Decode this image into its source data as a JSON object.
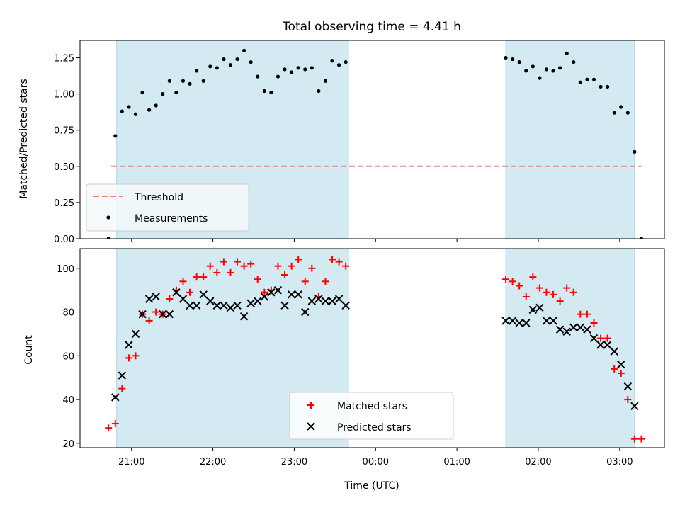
{
  "colors": {
    "threshold": "#f08080",
    "measurement": "#000000",
    "matched": "#ff0000",
    "predicted": "#000000",
    "shade": "#add8e6",
    "legend_bg": "#f5f9fc"
  },
  "chart_data": [
    {
      "type": "scatter",
      "title": "Total observing time = 4.41 h",
      "xlabel": "",
      "ylabel": "Matched/Predicted stars",
      "xlim": [
        "20:22",
        "03:33"
      ],
      "ylim": [
        0,
        1.37
      ],
      "grid": false,
      "legend": "lower-left",
      "yticks": [
        "0.00",
        "0.25",
        "0.50",
        "0.75",
        "1.00",
        "1.25"
      ],
      "shaded_ranges": [
        [
          "20:49",
          "23:40"
        ],
        [
          "01:36",
          "03:11"
        ]
      ],
      "threshold": {
        "name": "Threshold",
        "y": 0.5,
        "x_range": [
          "20:45",
          "03:16"
        ]
      },
      "series": [
        {
          "name": "Measurements",
          "points": [
            [
              "20:43",
              0.0
            ],
            [
              "20:48",
              0.71
            ],
            [
              "20:53",
              0.88
            ],
            [
              "20:58",
              0.91
            ],
            [
              "21:03",
              0.86
            ],
            [
              "21:08",
              1.01
            ],
            [
              "21:13",
              0.89
            ],
            [
              "21:18",
              0.92
            ],
            [
              "21:23",
              1.0
            ],
            [
              "21:28",
              1.09
            ],
            [
              "21:33",
              1.01
            ],
            [
              "21:38",
              1.09
            ],
            [
              "21:43",
              1.07
            ],
            [
              "21:48",
              1.16
            ],
            [
              "21:53",
              1.09
            ],
            [
              "21:58",
              1.19
            ],
            [
              "22:03",
              1.18
            ],
            [
              "22:08",
              1.24
            ],
            [
              "22:13",
              1.2
            ],
            [
              "22:18",
              1.24
            ],
            [
              "22:23",
              1.3
            ],
            [
              "22:28",
              1.22
            ],
            [
              "22:33",
              1.12
            ],
            [
              "22:38",
              1.02
            ],
            [
              "22:43",
              1.01
            ],
            [
              "22:48",
              1.12
            ],
            [
              "22:53",
              1.17
            ],
            [
              "22:58",
              1.15
            ],
            [
              "23:03",
              1.18
            ],
            [
              "23:08",
              1.17
            ],
            [
              "23:13",
              1.18
            ],
            [
              "23:18",
              1.02
            ],
            [
              "23:23",
              1.09
            ],
            [
              "23:28",
              1.23
            ],
            [
              "23:33",
              1.2
            ],
            [
              "23:38",
              1.22
            ],
            [
              "01:36",
              1.25
            ],
            [
              "01:41",
              1.24
            ],
            [
              "01:46",
              1.22
            ],
            [
              "01:51",
              1.16
            ],
            [
              "01:56",
              1.19
            ],
            [
              "02:01",
              1.11
            ],
            [
              "02:06",
              1.17
            ],
            [
              "02:11",
              1.16
            ],
            [
              "02:16",
              1.18
            ],
            [
              "02:21",
              1.28
            ],
            [
              "02:26",
              1.22
            ],
            [
              "02:31",
              1.08
            ],
            [
              "02:36",
              1.1
            ],
            [
              "02:41",
              1.1
            ],
            [
              "02:46",
              1.05
            ],
            [
              "02:51",
              1.05
            ],
            [
              "02:56",
              0.87
            ],
            [
              "03:01",
              0.91
            ],
            [
              "03:06",
              0.87
            ],
            [
              "03:11",
              0.6
            ],
            [
              "03:16",
              0.0
            ]
          ]
        }
      ]
    },
    {
      "type": "scatter",
      "title": "",
      "xlabel": "Time (UTC)",
      "ylabel": "Count",
      "xlim": [
        "20:22",
        "03:33"
      ],
      "ylim": [
        18,
        109
      ],
      "grid": false,
      "legend": "lower-center",
      "xticks": [
        "21:00",
        "22:00",
        "23:00",
        "00:00",
        "01:00",
        "02:00",
        "03:00"
      ],
      "yticks": [
        "20",
        "40",
        "60",
        "80",
        "100"
      ],
      "shaded_ranges": [
        [
          "20:49",
          "23:40"
        ],
        [
          "01:36",
          "03:11"
        ]
      ],
      "series": [
        {
          "name": "Matched stars",
          "marker": "+",
          "points": [
            [
              "20:43",
              27
            ],
            [
              "20:48",
              29
            ],
            [
              "20:53",
              45
            ],
            [
              "20:58",
              59
            ],
            [
              "21:03",
              60
            ],
            [
              "21:08",
              79
            ],
            [
              "21:13",
              76
            ],
            [
              "21:18",
              80
            ],
            [
              "21:23",
              79
            ],
            [
              "21:28",
              86
            ],
            [
              "21:33",
              90
            ],
            [
              "21:38",
              94
            ],
            [
              "21:43",
              89
            ],
            [
              "21:48",
              96
            ],
            [
              "21:53",
              96
            ],
            [
              "21:58",
              101
            ],
            [
              "22:03",
              98
            ],
            [
              "22:08",
              103
            ],
            [
              "22:13",
              98
            ],
            [
              "22:18",
              103
            ],
            [
              "22:23",
              101
            ],
            [
              "22:28",
              102
            ],
            [
              "22:33",
              95
            ],
            [
              "22:38",
              89
            ],
            [
              "22:43",
              90
            ],
            [
              "22:48",
              101
            ],
            [
              "22:53",
              97
            ],
            [
              "22:58",
              101
            ],
            [
              "23:03",
              104
            ],
            [
              "23:08",
              94
            ],
            [
              "23:13",
              100
            ],
            [
              "23:18",
              87
            ],
            [
              "23:23",
              94
            ],
            [
              "23:28",
              104
            ],
            [
              "23:33",
              103
            ],
            [
              "23:38",
              101
            ],
            [
              "01:36",
              95
            ],
            [
              "01:41",
              94
            ],
            [
              "01:46",
              92
            ],
            [
              "01:51",
              87
            ],
            [
              "01:56",
              96
            ],
            [
              "02:01",
              91
            ],
            [
              "02:06",
              89
            ],
            [
              "02:11",
              88
            ],
            [
              "02:16",
              85
            ],
            [
              "02:21",
              91
            ],
            [
              "02:26",
              89
            ],
            [
              "02:31",
              79
            ],
            [
              "02:36",
              79
            ],
            [
              "02:41",
              75
            ],
            [
              "02:46",
              68
            ],
            [
              "02:51",
              68
            ],
            [
              "02:56",
              54
            ],
            [
              "03:01",
              52
            ],
            [
              "03:06",
              40
            ],
            [
              "03:11",
              22
            ],
            [
              "03:16",
              22
            ]
          ]
        },
        {
          "name": "Predicted stars",
          "marker": "x",
          "points": [
            [
              "20:48",
              41
            ],
            [
              "20:53",
              51
            ],
            [
              "20:58",
              65
            ],
            [
              "21:03",
              70
            ],
            [
              "21:08",
              79
            ],
            [
              "21:13",
              86
            ],
            [
              "21:18",
              87
            ],
            [
              "21:23",
              79
            ],
            [
              "21:28",
              79
            ],
            [
              "21:33",
              89
            ],
            [
              "21:38",
              86
            ],
            [
              "21:43",
              83
            ],
            [
              "21:48",
              83
            ],
            [
              "21:53",
              88
            ],
            [
              "21:58",
              85
            ],
            [
              "22:03",
              83
            ],
            [
              "22:08",
              83
            ],
            [
              "22:13",
              82
            ],
            [
              "22:18",
              83
            ],
            [
              "22:23",
              78
            ],
            [
              "22:28",
              84
            ],
            [
              "22:33",
              85
            ],
            [
              "22:38",
              87
            ],
            [
              "22:43",
              89
            ],
            [
              "22:48",
              90
            ],
            [
              "22:53",
              83
            ],
            [
              "22:58",
              88
            ],
            [
              "23:03",
              88
            ],
            [
              "23:08",
              80
            ],
            [
              "23:13",
              85
            ],
            [
              "23:18",
              86
            ],
            [
              "23:23",
              85
            ],
            [
              "23:28",
              85
            ],
            [
              "23:33",
              86
            ],
            [
              "23:38",
              83
            ],
            [
              "01:36",
              76
            ],
            [
              "01:41",
              76
            ],
            [
              "01:46",
              75
            ],
            [
              "01:51",
              75
            ],
            [
              "01:56",
              81
            ],
            [
              "02:01",
              82
            ],
            [
              "02:06",
              76
            ],
            [
              "02:11",
              76
            ],
            [
              "02:16",
              72
            ],
            [
              "02:21",
              71
            ],
            [
              "02:26",
              73
            ],
            [
              "02:31",
              73
            ],
            [
              "02:36",
              72
            ],
            [
              "02:41",
              68
            ],
            [
              "02:46",
              65
            ],
            [
              "02:51",
              65
            ],
            [
              "02:56",
              62
            ],
            [
              "03:01",
              56
            ],
            [
              "03:06",
              46
            ],
            [
              "03:11",
              37
            ]
          ]
        }
      ]
    }
  ]
}
